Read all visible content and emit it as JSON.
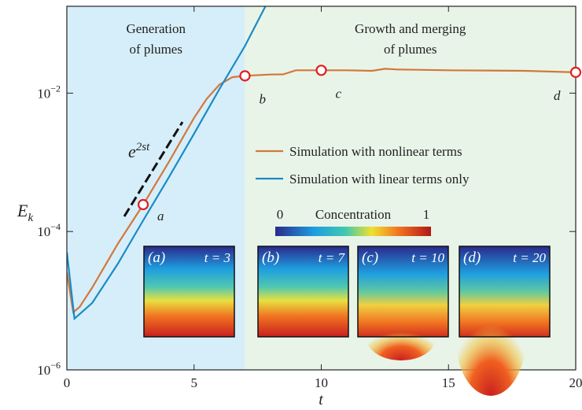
{
  "chart_data": {
    "type": "line",
    "xlabel": "t",
    "ylabel": {
      "main": "E",
      "sub": "k"
    },
    "xlim": [
      0,
      20
    ],
    "ylim": [
      1e-06,
      0.18
    ],
    "log_y": true,
    "xticks": [
      0,
      5,
      10,
      15,
      20
    ],
    "yticks": [
      {
        "value": 1e-06,
        "label": "10",
        "exponent": "−6"
      },
      {
        "value": 0.0001,
        "label": "10",
        "exponent": "−4"
      },
      {
        "value": 0.01,
        "label": "10",
        "exponent": "−2"
      }
    ],
    "regions": [
      {
        "from": 0,
        "to": 7,
        "color": "#d6eef9",
        "label": [
          "Generation",
          "of plumes"
        ]
      },
      {
        "from": 7,
        "to": 20,
        "color": "#e9f4e8",
        "label": [
          "Growth and merging",
          "of plumes"
        ]
      }
    ],
    "legend": "center",
    "series": [
      {
        "name": "Simulation with nonlinear terms",
        "color": "#d2783c",
        "x": [
          0,
          0.25,
          0.5,
          1,
          2,
          3,
          4,
          5,
          5.5,
          6,
          6.5,
          7,
          8,
          8.5,
          9,
          10,
          11,
          12,
          12.5,
          13,
          15,
          18,
          20
        ],
        "values": [
          2.6e-05,
          6.8e-06,
          8.1e-06,
          1.55e-05,
          6.6e-05,
          0.000245,
          0.001,
          0.0044,
          0.0083,
          0.0133,
          0.017,
          0.0178,
          0.0186,
          0.0187,
          0.0214,
          0.0214,
          0.0214,
          0.021,
          0.0225,
          0.022,
          0.0214,
          0.021,
          0.02
        ]
      },
      {
        "name": "Simulation with linear terms only",
        "color": "#1a8ac6",
        "x": [
          0,
          0.3,
          1,
          2,
          3,
          4,
          5,
          6,
          7,
          7.8
        ],
        "values": [
          5e-05,
          5.5e-06,
          9.3e-06,
          3.4e-05,
          0.000145,
          0.0006,
          0.0026,
          0.0115,
          0.048,
          0.178
        ]
      }
    ],
    "markers": {
      "x": [
        3,
        7,
        10,
        20
      ],
      "values": [
        0.000245,
        0.0178,
        0.0214,
        0.02
      ],
      "labels": [
        "a",
        "b",
        "c",
        "d"
      ],
      "color": "#e02020"
    },
    "annotation": {
      "base": "e",
      "exponent": "2st"
    },
    "colorbar": {
      "title": "Concentration",
      "min_label": "0",
      "max_label": "1"
    },
    "insets": [
      {
        "label": "(a)",
        "time": "t = 3"
      },
      {
        "label": "(b)",
        "time": "t = 7"
      },
      {
        "label": "(c)",
        "time": "t = 10"
      },
      {
        "label": "(d)",
        "time": "t = 20"
      }
    ]
  }
}
